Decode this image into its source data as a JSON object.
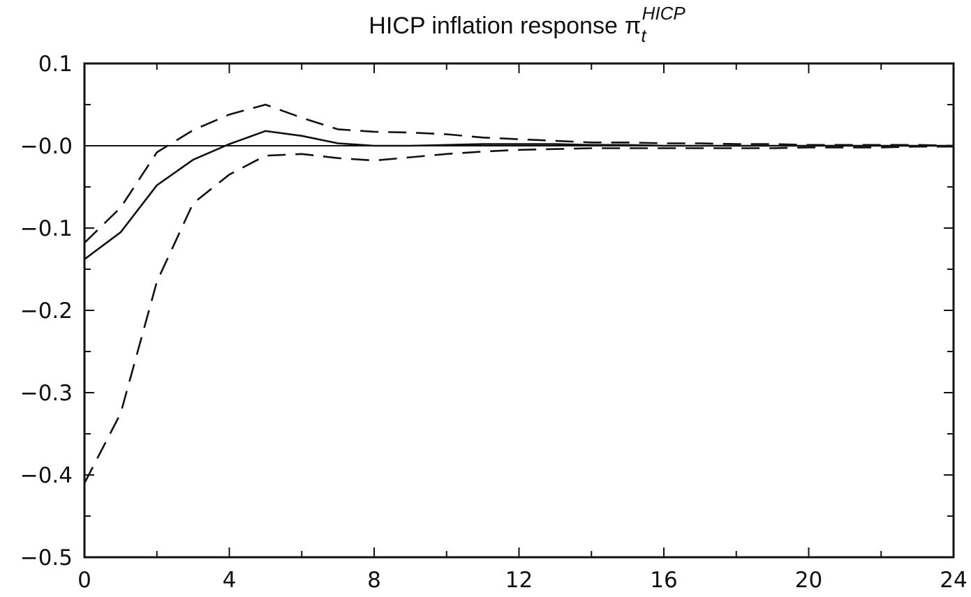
{
  "chart_data": {
    "type": "line",
    "title": {
      "main": "HICP inflation response",
      "symbol": "π",
      "subscript": "t",
      "superscript": "HICP"
    },
    "xlabel": "",
    "ylabel": "",
    "xlim": [
      0,
      24
    ],
    "ylim": [
      -0.5,
      0.1
    ],
    "x_ticks": [
      0,
      4,
      8,
      12,
      16,
      20,
      24
    ],
    "x_tick_labels": [
      "0",
      "4",
      "8",
      "12",
      "16",
      "20",
      "24"
    ],
    "x_minor_step": 2,
    "y_ticks": [
      0.1,
      0.0,
      -0.1,
      -0.2,
      -0.3,
      -0.4,
      -0.5
    ],
    "y_tick_labels": [
      "0.1",
      "−0.0",
      "−0.1",
      "−0.2",
      "−0.3",
      "−0.4",
      "−0.5"
    ],
    "y_minor_step": 0.05,
    "zero_line": 0,
    "grid": false,
    "legend": "none",
    "x": [
      0,
      1,
      2,
      3,
      4,
      5,
      6,
      7,
      8,
      9,
      10,
      11,
      12,
      13,
      14,
      15,
      16,
      17,
      18,
      19,
      20,
      21,
      22,
      23,
      24
    ],
    "series": [
      {
        "style": "solid",
        "values": [
          -0.138,
          -0.105,
          -0.048,
          -0.017,
          0.002,
          0.018,
          0.012,
          0.003,
          0.0,
          0.0,
          0.001,
          0.002,
          0.002,
          0.002,
          0.001,
          0.001,
          0.0,
          0.0,
          0.0,
          0.0,
          0.0,
          0.0,
          0.0,
          0.0,
          0.0
        ]
      },
      {
        "style": "dashed",
        "values": [
          -0.118,
          -0.075,
          -0.008,
          0.019,
          0.038,
          0.05,
          0.034,
          0.02,
          0.017,
          0.016,
          0.014,
          0.01,
          0.008,
          0.006,
          0.004,
          0.004,
          0.003,
          0.003,
          0.002,
          0.002,
          0.001,
          0.001,
          0.001,
          0.001,
          0.0
        ]
      },
      {
        "style": "dashed",
        "values": [
          -0.41,
          -0.325,
          -0.165,
          -0.07,
          -0.035,
          -0.012,
          -0.01,
          -0.015,
          -0.018,
          -0.014,
          -0.01,
          -0.007,
          -0.005,
          -0.004,
          -0.003,
          -0.003,
          -0.003,
          -0.003,
          -0.003,
          -0.003,
          -0.002,
          -0.002,
          -0.002,
          -0.001,
          -0.001
        ]
      }
    ]
  }
}
